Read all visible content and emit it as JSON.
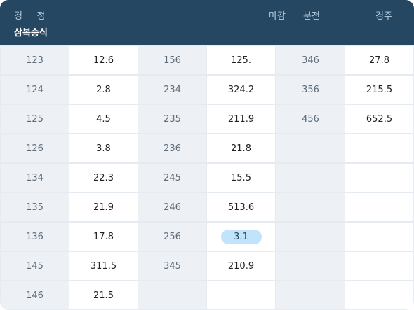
{
  "header": {
    "tabs": [
      "경",
      "정"
    ],
    "subtitle": "삼복승식",
    "right_labels": [
      "마감",
      "분전",
      "경주"
    ]
  },
  "columns": [
    {
      "rows": [
        {
          "combo": "123",
          "odds": "12.6"
        },
        {
          "combo": "124",
          "odds": "2.8"
        },
        {
          "combo": "125",
          "odds": "4.5"
        },
        {
          "combo": "126",
          "odds": "3.8"
        },
        {
          "combo": "134",
          "odds": "22.3"
        },
        {
          "combo": "135",
          "odds": "21.9"
        },
        {
          "combo": "136",
          "odds": "17.8"
        },
        {
          "combo": "145",
          "odds": "311.5"
        },
        {
          "combo": "146",
          "odds": "21.5"
        }
      ]
    },
    {
      "rows": [
        {
          "combo": "156",
          "odds": "125."
        },
        {
          "combo": "234",
          "odds": "324.2"
        },
        {
          "combo": "235",
          "odds": "211.9"
        },
        {
          "combo": "236",
          "odds": "21.8"
        },
        {
          "combo": "245",
          "odds": "15.5"
        },
        {
          "combo": "246",
          "odds": "513.6"
        },
        {
          "combo": "256",
          "odds": "3.1",
          "highlight": true
        },
        {
          "combo": "345",
          "odds": "210.9"
        },
        {
          "combo": "",
          "odds": ""
        }
      ]
    },
    {
      "rows": [
        {
          "combo": "346",
          "odds": "27.8"
        },
        {
          "combo": "356",
          "odds": "215.5"
        },
        {
          "combo": "456",
          "odds": "652.5"
        },
        {
          "combo": "",
          "odds": ""
        },
        {
          "combo": "",
          "odds": ""
        },
        {
          "combo": "",
          "odds": ""
        },
        {
          "combo": "",
          "odds": ""
        },
        {
          "combo": "",
          "odds": ""
        },
        {
          "combo": "",
          "odds": ""
        }
      ]
    }
  ],
  "colors": {
    "header_bg": "#254761",
    "combo_bg": "#edf1f6",
    "odds_bg": "#ffffff",
    "highlight": "#bfe4fb"
  }
}
